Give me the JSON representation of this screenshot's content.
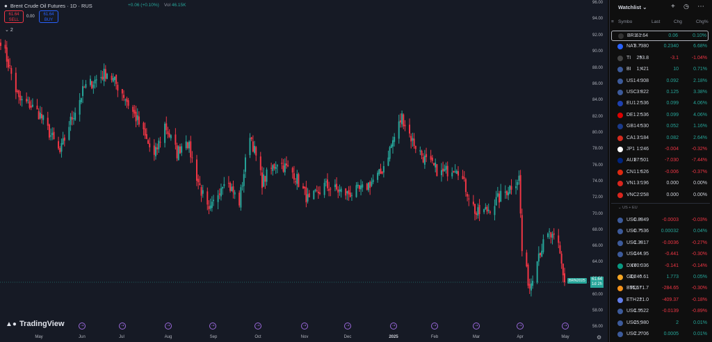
{
  "chart": {
    "title": "Brent Crude Oil Futures · 1D · RUS",
    "change": "+0.06 (+0.10%)",
    "vol_label": "Vol",
    "vol_value": "46.15K",
    "sell_price": "61.64",
    "sell_label": "SELL",
    "spread": "0.00",
    "buy_price": "61.64",
    "buy_label": "BUY",
    "collapse_count": "2",
    "logo": "TradingView",
    "symbol_tag": "BRN2025",
    "price_tag": "61.64",
    "countdown": "1d 2h",
    "event_icon": "calendar-event-icon",
    "y_ticks": [
      "96.00",
      "94.00",
      "92.00",
      "90.00",
      "88.00",
      "86.00",
      "84.00",
      "82.00",
      "80.00",
      "78.00",
      "76.00",
      "74.00",
      "72.00",
      "70.00",
      "68.00",
      "66.00",
      "64.00",
      "62.00",
      "60.00",
      "58.00",
      "56.00"
    ],
    "x_ticks": [
      {
        "label": "May",
        "bold": false
      },
      {
        "label": "Jun",
        "bold": false
      },
      {
        "label": "Jul",
        "bold": false
      },
      {
        "label": "Aug",
        "bold": false
      },
      {
        "label": "Sep",
        "bold": false
      },
      {
        "label": "Oct",
        "bold": false
      },
      {
        "label": "Nov",
        "bold": false
      },
      {
        "label": "Dec",
        "bold": false
      },
      {
        "label": "2025",
        "bold": true
      },
      {
        "label": "Feb",
        "bold": false
      },
      {
        "label": "Mar",
        "bold": false
      },
      {
        "label": "Apr",
        "bold": false
      },
      {
        "label": "May",
        "bold": false
      }
    ],
    "colors": {
      "up": "#26a69a",
      "down": "#f23645",
      "bg": "#161a25",
      "event": "#9c6ade"
    }
  },
  "chart_data": {
    "type": "candlestick",
    "title": "Brent Crude Oil Futures",
    "interval": "1D",
    "ylim": [
      56,
      96
    ],
    "anchors": [
      [
        "2024-04-26",
        91.5
      ],
      [
        "2024-05-01",
        88.5
      ],
      [
        "2024-05-08",
        84.0
      ],
      [
        "2024-05-15",
        83.5
      ],
      [
        "2024-05-22",
        82.2
      ],
      [
        "2024-06-04",
        77.5
      ],
      [
        "2024-06-10",
        81.0
      ],
      [
        "2024-06-20",
        85.5
      ],
      [
        "2024-07-05",
        87.5
      ],
      [
        "2024-07-15",
        85.0
      ],
      [
        "2024-07-25",
        81.5
      ],
      [
        "2024-08-05",
        77.0
      ],
      [
        "2024-08-12",
        81.0
      ],
      [
        "2024-08-20",
        77.5
      ],
      [
        "2024-08-26",
        79.5
      ],
      [
        "2024-09-03",
        74.0
      ],
      [
        "2024-09-10",
        70.0
      ],
      [
        "2024-09-20",
        74.5
      ],
      [
        "2024-09-30",
        71.5
      ],
      [
        "2024-10-07",
        80.0
      ],
      [
        "2024-10-15",
        74.0
      ],
      [
        "2024-10-25",
        76.5
      ],
      [
        "2024-11-05",
        75.0
      ],
      [
        "2024-11-15",
        71.5
      ],
      [
        "2024-11-25",
        73.5
      ],
      [
        "2024-12-10",
        72.5
      ],
      [
        "2024-12-20",
        73.0
      ],
      [
        "2025-01-01",
        75.0
      ],
      [
        "2025-01-10",
        79.5
      ],
      [
        "2025-01-15",
        82.0
      ],
      [
        "2025-01-22",
        79.0
      ],
      [
        "2025-01-31",
        76.5
      ],
      [
        "2025-02-10",
        75.0
      ],
      [
        "2025-02-20",
        76.0
      ],
      [
        "2025-03-05",
        70.0
      ],
      [
        "2025-03-12",
        70.5
      ],
      [
        "2025-03-20",
        72.0
      ],
      [
        "2025-04-02",
        74.5
      ],
      [
        "2025-04-04",
        65.5
      ],
      [
        "2025-04-09",
        61.0
      ],
      [
        "2025-04-14",
        65.0
      ],
      [
        "2025-04-22",
        67.5
      ],
      [
        "2025-04-28",
        66.0
      ],
      [
        "2025-05-02",
        61.64
      ]
    ],
    "last": 61.64
  },
  "watchlist": {
    "title": "Watchlist",
    "headers": {
      "symbol": "Symbo",
      "last": "Last",
      "chg": "Chg",
      "chgp": "Chg%"
    },
    "section_label": "US + EU",
    "rows": [
      {
        "sym": "BR1",
        "last": "61.64",
        "chg": "0.06",
        "chgp": "0.10%",
        "dir": "pos",
        "flag": "#333",
        "icon": "oil-drop-icon",
        "selected": true
      },
      {
        "sym": "NAT",
        "last": "3.7380",
        "chg": "0.2340",
        "chgp": "6.68%",
        "dir": "pos",
        "flag": "#2962ff",
        "icon": "gas-flame-icon"
      },
      {
        "sym": "TI",
        "last": "293.8",
        "chg": "-3.1",
        "chgp": "-1.04%",
        "dir": "neg",
        "flag": "#444",
        "icon": "commodity-icon"
      },
      {
        "sym": "BI",
        "last": "1,421",
        "chg": "10",
        "chgp": "0.71%",
        "dir": "pos",
        "flag": "#3c5a9a",
        "icon": "us-flag-icon"
      },
      {
        "sym": "US1",
        "last": "4.308",
        "chg": "0.092",
        "chgp": "2.18%",
        "dir": "pos",
        "flag": "#3c5a9a",
        "icon": "us-flag-icon"
      },
      {
        "sym": "USC",
        "last": "3.822",
        "chg": "0.125",
        "chgp": "3.38%",
        "dir": "pos",
        "flag": "#3c5a9a",
        "icon": "us-flag-icon"
      },
      {
        "sym": "EU1",
        "last": "2.536",
        "chg": "0.099",
        "chgp": "4.06%",
        "dir": "pos",
        "flag": "#1e40af",
        "icon": "eu-flag-icon"
      },
      {
        "sym": "DE1",
        "last": "2.536",
        "chg": "0.099",
        "chgp": "4.06%",
        "dir": "pos",
        "flag": "#dd0000",
        "icon": "de-flag-icon"
      },
      {
        "sym": "GB1",
        "last": "4.530",
        "chg": "0.052",
        "chgp": "1.16%",
        "dir": "pos",
        "flag": "#1a3a8a",
        "icon": "gb-flag-icon"
      },
      {
        "sym": "CA1",
        "last": "3.184",
        "chg": "0.082",
        "chgp": "2.64%",
        "dir": "pos",
        "flag": "#d52b1e",
        "icon": "ca-flag-icon"
      },
      {
        "sym": "JP1",
        "last": "1.246",
        "chg": "-0.004",
        "chgp": "-0.32%",
        "dir": "neg",
        "flag": "#ffffff",
        "icon": "jp-flag-icon"
      },
      {
        "sym": "AU1",
        "last": "87.501",
        "chg": "-7.030",
        "chgp": "-7.44%",
        "dir": "neg",
        "flag": "#00247d",
        "icon": "au-flag-icon"
      },
      {
        "sym": "CN1",
        "last": "1.626",
        "chg": "-0.006",
        "chgp": "-0.37%",
        "dir": "neg",
        "flag": "#de2910",
        "icon": "cn-flag-icon"
      },
      {
        "sym": "VN1",
        "last": "3.196",
        "chg": "0.000",
        "chgp": "0.00%",
        "dir": "neu",
        "flag": "#da251d",
        "icon": "vn-flag-icon"
      },
      {
        "sym": "VNC",
        "last": "2.258",
        "chg": "0.000",
        "chgp": "0.00%",
        "dir": "neu",
        "flag": "#da251d",
        "icon": "vn-flag-icon"
      },
      {
        "sym": "USC",
        "last": "0.8849",
        "chg": "-0.0003",
        "chgp": "-0.03%",
        "dir": "neg",
        "flag": "#3c5a9a",
        "icon": "fx-pair-icon"
      },
      {
        "sym": "USC",
        "last": "0.7536",
        "chg": "0.00032",
        "chgp": "0.04%",
        "dir": "pos",
        "flag": "#3c5a9a",
        "icon": "fx-pair-icon"
      },
      {
        "sym": "USC",
        "last": "1.3817",
        "chg": "-0.0036",
        "chgp": "-0.27%",
        "dir": "neg",
        "flag": "#3c5a9a",
        "icon": "fx-pair-icon"
      },
      {
        "sym": "USC",
        "last": "144.95",
        "chg": "-0.441",
        "chgp": "-0.30%",
        "dir": "neg",
        "flag": "#3c5a9a",
        "icon": "fx-pair-icon"
      },
      {
        "sym": "DXY",
        "last": "100.036",
        "chg": "-0.141",
        "chgp": "-0.14%",
        "dir": "neg",
        "flag": "#089981",
        "icon": "dollar-index-icon"
      },
      {
        "sym": "GOI",
        "last": "3,240.61",
        "chg": "1.773",
        "chgp": "0.05%",
        "dir": "pos",
        "flag": "#f5a623",
        "icon": "gold-icon"
      },
      {
        "sym": "BTCL",
        "last": "95,571.7",
        "chg": "-284.65",
        "chgp": "-0.30%",
        "dir": "neg",
        "flag": "#f7931a",
        "icon": "bitcoin-icon"
      },
      {
        "sym": "ETH",
        "last": "221.0",
        "chg": "-409.37",
        "chgp": "-0.18%",
        "dir": "neg",
        "flag": "#627eea",
        "icon": "ethereum-icon"
      },
      {
        "sym": "USC",
        "last": "1.5522",
        "chg": "-0.0139",
        "chgp": "-0.89%",
        "dir": "neg",
        "flag": "#3c5a9a",
        "icon": "fx-pair-icon"
      },
      {
        "sym": "USC",
        "last": "25,980",
        "chg": "2",
        "chgp": "0.01%",
        "dir": "pos",
        "flag": "#3c5a9a",
        "icon": "fx-pair-icon"
      },
      {
        "sym": "USC",
        "last": "7.2706",
        "chg": "0.0005",
        "chgp": "0.01%",
        "dir": "pos",
        "flag": "#3c5a9a",
        "icon": "fx-pair-icon"
      }
    ]
  }
}
